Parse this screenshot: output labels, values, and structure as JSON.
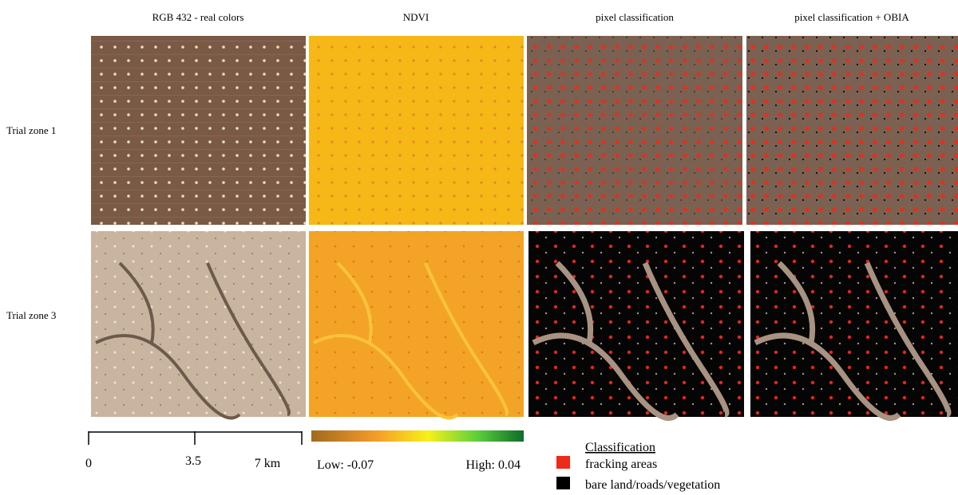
{
  "columns": [
    "RGB 432 - real colors",
    "NDVI",
    "pixel classification",
    "pixel classification + OBIA"
  ],
  "rows": [
    "Trial zone 1",
    "Trial zone 3"
  ],
  "scale_bar": {
    "ticks": [
      "0",
      "3.5",
      "7 km"
    ]
  },
  "colorbar": {
    "low": "Low: -0.07",
    "high": "High: 0.04"
  },
  "legend": {
    "title": "Classification",
    "items": [
      "fracking areas",
      "bare land/roads/vegetation"
    ]
  }
}
